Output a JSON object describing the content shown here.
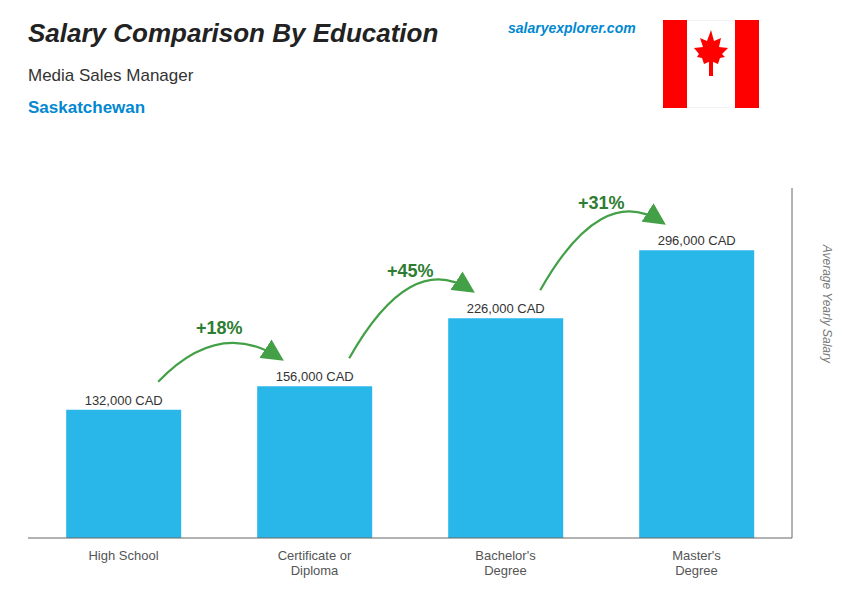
{
  "chart_data": {
    "type": "bar",
    "title": "Salary Comparison By Education",
    "subtitle": "Media Sales Manager",
    "annotations": [
      "Saskatchewan",
      "salaryexplorer.com",
      "+18%",
      "+45%",
      "+31%"
    ],
    "categories": [
      "High School",
      "Certificate or\nDiploma",
      "Bachelor's\nDegree",
      "Master's\nDegree"
    ],
    "values": [
      132000,
      156000,
      226000,
      296000
    ],
    "value_labels": [
      "132,000 CAD",
      "156,000 CAD",
      "226,000 CAD",
      "296,000 CAD"
    ],
    "data_labels": true,
    "color": "#29b6e8",
    "ylabel": "Average Yearly Salary",
    "ylim": [
      0,
      360000
    ],
    "tick_labels": "x",
    "grid": false
  }
}
